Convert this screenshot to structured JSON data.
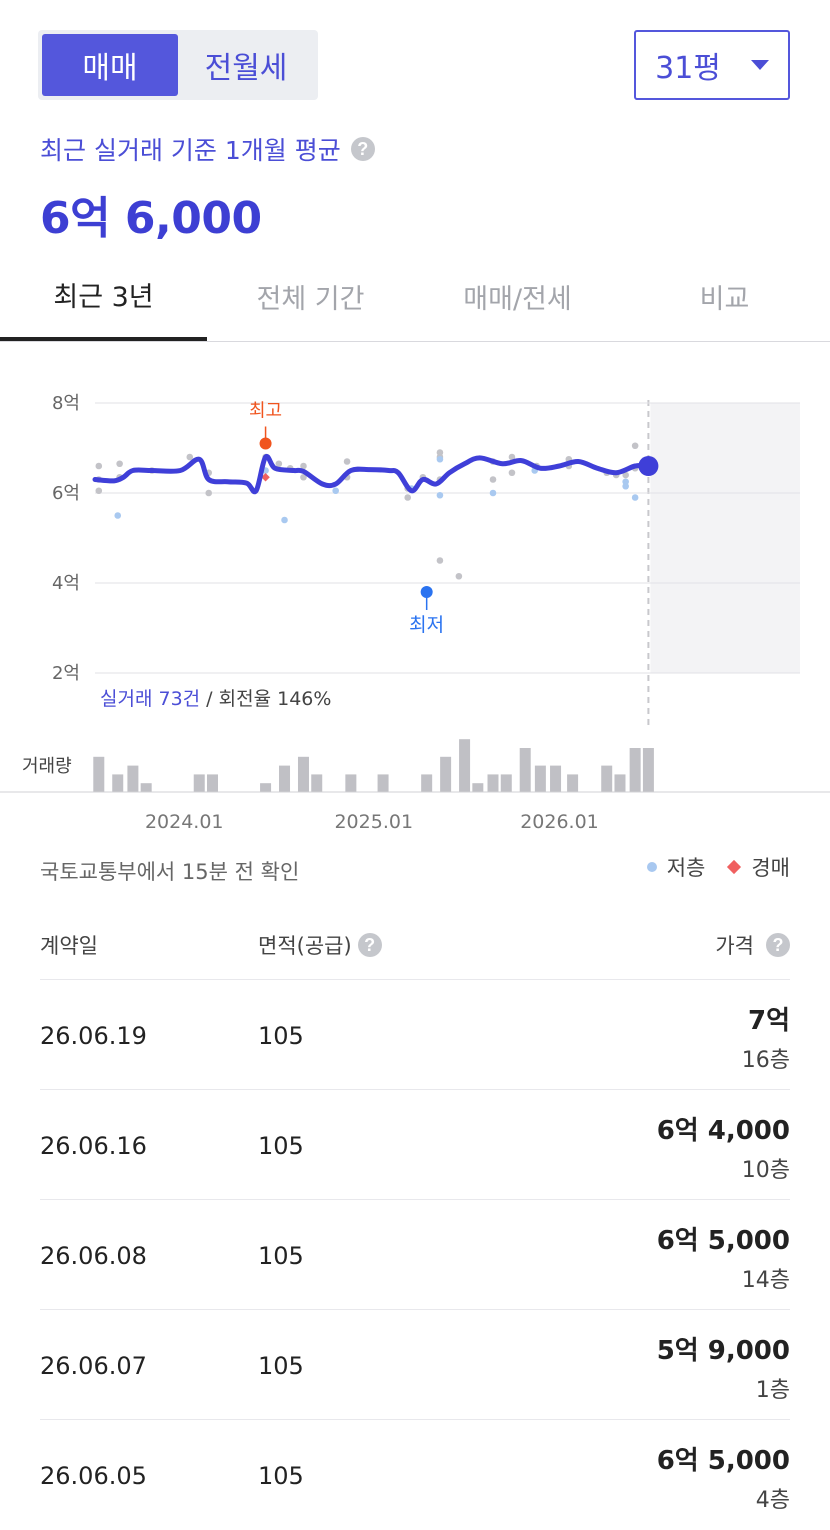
{
  "trade_toggle": {
    "sale_label": "매매",
    "rent_label": "전월세"
  },
  "size_select": {
    "value": "31평"
  },
  "summary": {
    "label": "최근 실거래 기준 1개월 평균",
    "value": "6억 6,000",
    "help": "?"
  },
  "tabs": [
    {
      "label": "최근 3년",
      "active": true
    },
    {
      "label": "전체 기간",
      "active": false
    },
    {
      "label": "매매/전세",
      "active": false
    },
    {
      "label": "비교",
      "active": false
    }
  ],
  "chart": {
    "stats_count": "실거래 73건",
    "stats_sep": " / ",
    "stats_turnover": "회전율 146%",
    "volume_label": "거래량",
    "high_label": "최고",
    "low_label": "최저"
  },
  "chart_data": {
    "type": "line",
    "y_unit": "억",
    "ylim": [
      2,
      8
    ],
    "y_ticks": [
      "8억",
      "6억",
      "4억",
      "2억"
    ],
    "x_ticks": [
      "2024.01",
      "2025.01",
      "2026.01"
    ],
    "xlim": [
      2023.45,
      2026.6
    ],
    "grid": true,
    "average_line": [
      [
        2023.45,
        6.3
      ],
      [
        2023.55,
        6.27
      ],
      [
        2023.6,
        6.35
      ],
      [
        2023.65,
        6.5
      ],
      [
        2023.75,
        6.5
      ],
      [
        2023.9,
        6.5
      ],
      [
        2024.0,
        6.75
      ],
      [
        2024.05,
        6.3
      ],
      [
        2024.15,
        6.25
      ],
      [
        2024.25,
        6.22
      ],
      [
        2024.3,
        6.05
      ],
      [
        2024.35,
        6.8
      ],
      [
        2024.4,
        6.55
      ],
      [
        2024.5,
        6.5
      ],
      [
        2024.55,
        6.48
      ],
      [
        2024.65,
        6.2
      ],
      [
        2024.72,
        6.2
      ],
      [
        2024.8,
        6.5
      ],
      [
        2024.9,
        6.52
      ],
      [
        2025.0,
        6.5
      ],
      [
        2025.05,
        6.45
      ],
      [
        2025.12,
        6.05
      ],
      [
        2025.18,
        6.3
      ],
      [
        2025.25,
        6.2
      ],
      [
        2025.32,
        6.45
      ],
      [
        2025.4,
        6.65
      ],
      [
        2025.48,
        6.78
      ],
      [
        2025.6,
        6.65
      ],
      [
        2025.7,
        6.72
      ],
      [
        2025.8,
        6.55
      ],
      [
        2025.9,
        6.6
      ],
      [
        2026.0,
        6.7
      ],
      [
        2026.1,
        6.55
      ],
      [
        2026.2,
        6.45
      ],
      [
        2026.3,
        6.6
      ],
      [
        2026.37,
        6.6
      ]
    ],
    "current": [
      2026.37,
      6.6
    ],
    "high": {
      "x": 2024.35,
      "y": 7.1
    },
    "low": {
      "x": 2025.2,
      "y": 3.8
    },
    "trades": [
      [
        2023.47,
        6.6
      ],
      [
        2023.47,
        6.3
      ],
      [
        2023.47,
        6.05
      ],
      [
        2023.58,
        6.65
      ],
      [
        2023.58,
        6.35
      ],
      [
        2023.75,
        6.5
      ],
      [
        2023.95,
        6.8
      ],
      [
        2024.05,
        6.45
      ],
      [
        2024.05,
        6.0
      ],
      [
        2024.35,
        6.8
      ],
      [
        2024.42,
        6.65
      ],
      [
        2024.48,
        6.55
      ],
      [
        2024.55,
        6.35
      ],
      [
        2024.55,
        6.6
      ],
      [
        2024.78,
        6.7
      ],
      [
        2024.78,
        6.35
      ],
      [
        2025.1,
        6.1
      ],
      [
        2025.1,
        5.9
      ],
      [
        2025.18,
        6.35
      ],
      [
        2025.27,
        6.9
      ],
      [
        2025.27,
        6.8
      ],
      [
        2025.27,
        6.3
      ],
      [
        2025.27,
        4.5
      ],
      [
        2025.37,
        4.15
      ],
      [
        2025.55,
        6.7
      ],
      [
        2025.55,
        6.3
      ],
      [
        2025.65,
        6.8
      ],
      [
        2025.65,
        6.45
      ],
      [
        2025.78,
        6.6
      ],
      [
        2025.95,
        6.75
      ],
      [
        2025.95,
        6.6
      ],
      [
        2026.15,
        6.45
      ],
      [
        2026.2,
        6.4
      ],
      [
        2026.25,
        6.4
      ],
      [
        2026.3,
        7.05
      ],
      [
        2026.3,
        6.55
      ]
    ],
    "low_floor_trades": [
      [
        2023.57,
        5.5
      ],
      [
        2024.35,
        6.5
      ],
      [
        2024.45,
        5.4
      ],
      [
        2024.72,
        6.05
      ],
      [
        2025.12,
        6.1
      ],
      [
        2025.27,
        6.75
      ],
      [
        2025.27,
        5.95
      ],
      [
        2025.55,
        6.0
      ],
      [
        2025.77,
        6.5
      ],
      [
        2026.25,
        6.25
      ],
      [
        2026.25,
        6.15
      ],
      [
        2026.3,
        5.9
      ]
    ],
    "auction_trades": [
      [
        2024.35,
        6.35
      ]
    ],
    "volume": [
      [
        2023.47,
        4
      ],
      [
        2023.57,
        2
      ],
      [
        2023.65,
        3
      ],
      [
        2023.72,
        1
      ],
      [
        2024.0,
        2
      ],
      [
        2024.07,
        2
      ],
      [
        2024.35,
        1
      ],
      [
        2024.45,
        3
      ],
      [
        2024.55,
        4
      ],
      [
        2024.62,
        2
      ],
      [
        2024.8,
        2
      ],
      [
        2024.97,
        2
      ],
      [
        2025.2,
        2
      ],
      [
        2025.3,
        4
      ],
      [
        2025.4,
        6
      ],
      [
        2025.47,
        1
      ],
      [
        2025.55,
        2
      ],
      [
        2025.62,
        2
      ],
      [
        2025.72,
        5
      ],
      [
        2025.8,
        3
      ],
      [
        2025.88,
        3
      ],
      [
        2025.97,
        2
      ],
      [
        2026.15,
        3
      ],
      [
        2026.22,
        2
      ],
      [
        2026.3,
        5
      ],
      [
        2026.37,
        5
      ]
    ],
    "legend": [
      "저층",
      "경매"
    ]
  },
  "source_note": "국토교통부에서 15분 전 확인",
  "legend": {
    "low_floor": "저층",
    "auction": "경매"
  },
  "table": {
    "headers": {
      "date": "계약일",
      "area": "면적(공급)",
      "price": "가격"
    },
    "rows": [
      {
        "date": "26.06.19",
        "area": "105",
        "price": "7억",
        "floor": "16층"
      },
      {
        "date": "26.06.16",
        "area": "105",
        "price": "6억 4,000",
        "floor": "10층"
      },
      {
        "date": "26.06.08",
        "area": "105",
        "price": "6억 5,000",
        "floor": "14층"
      },
      {
        "date": "26.06.07",
        "area": "105",
        "price": "5억 9,000",
        "floor": "1층"
      },
      {
        "date": "26.06.05",
        "area": "105",
        "price": "6억 5,000",
        "floor": "4층"
      }
    ]
  }
}
